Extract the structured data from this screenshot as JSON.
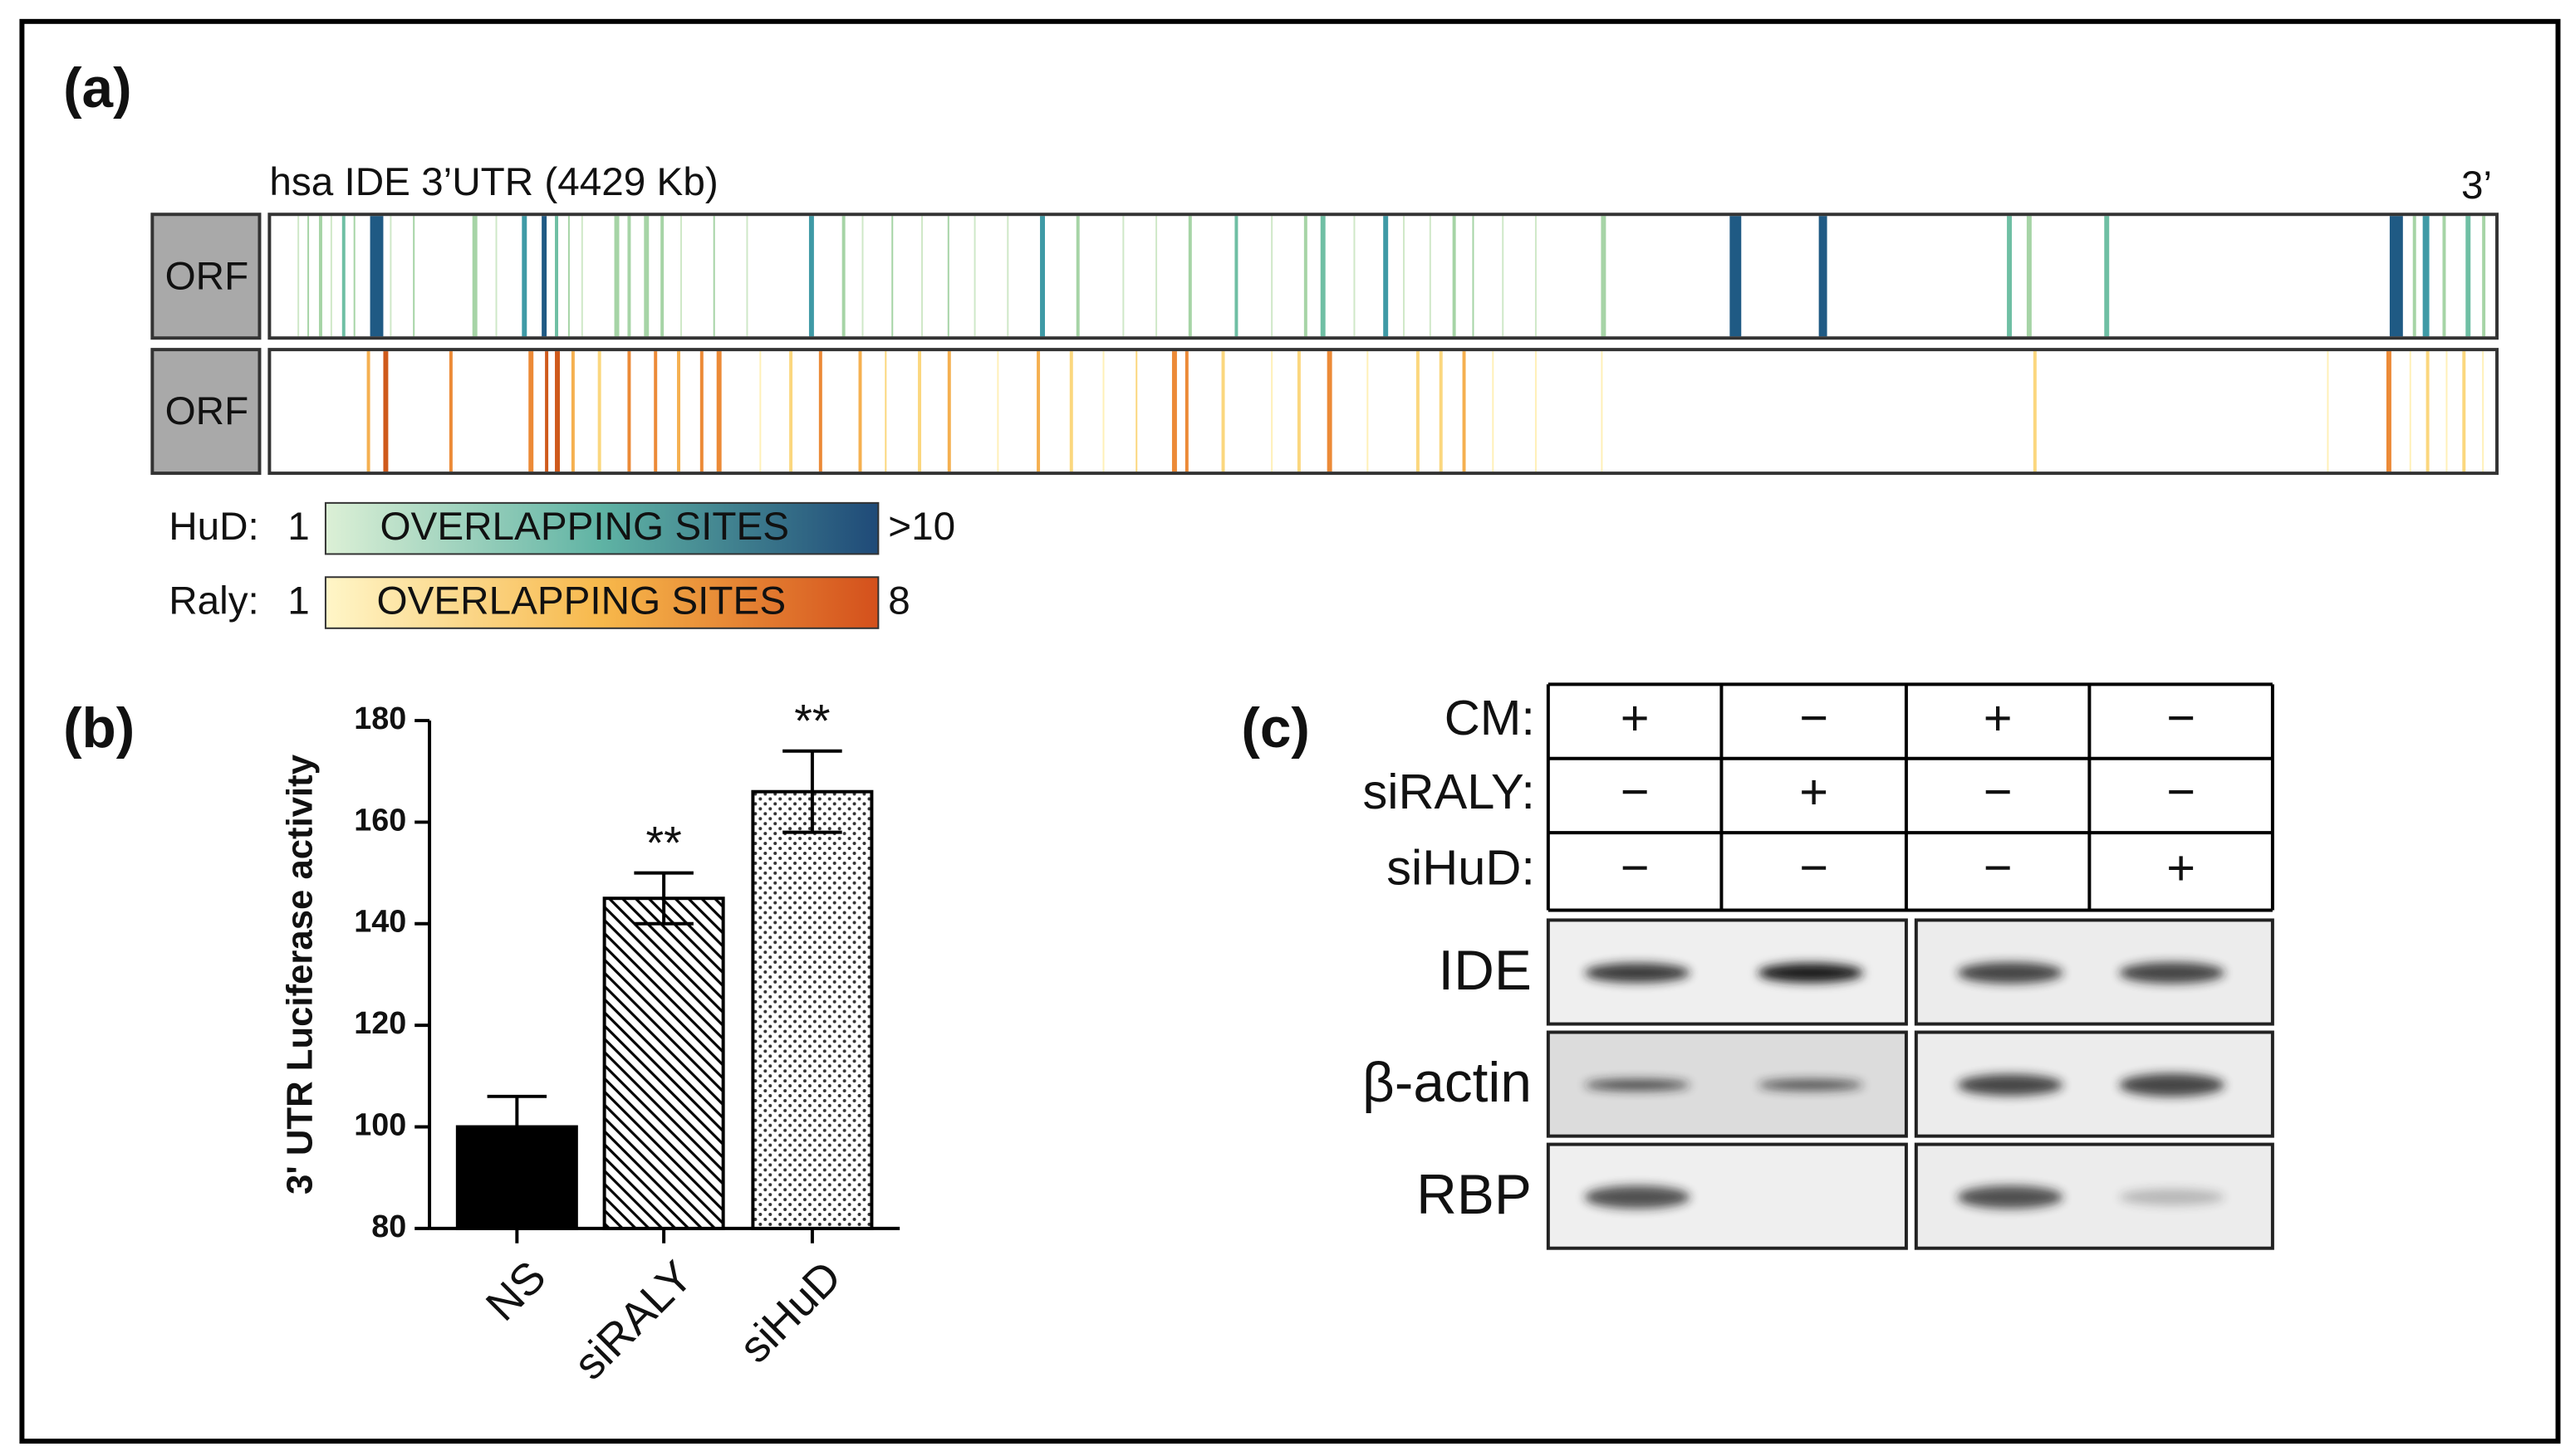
{
  "panel_a": {
    "label": "(a)",
    "track_title": "hsa IDE 3’UTR (4429 Kb)",
    "end_label": "3’",
    "orf_labels": [
      "ORF",
      "ORF"
    ],
    "legend": [
      {
        "name": "HuD:",
        "min": "1",
        "text": "OVERLAPPING SITES",
        "max": ">10"
      },
      {
        "name": "Raly:",
        "min": "1",
        "text": "OVERLAPPING SITES",
        "max": "8"
      }
    ]
  },
  "chart_data": {
    "type": "bar",
    "label": "(b)",
    "ylabel": "3' UTR Luciferase activity",
    "categories": [
      "NS",
      "siRALY",
      "siHuD"
    ],
    "values": [
      100,
      145,
      166
    ],
    "errors": [
      6,
      5,
      8
    ],
    "patterns": [
      "solid",
      "hatch",
      "dots"
    ],
    "color": "#000000",
    "ylim": [
      80,
      180
    ],
    "yticks": [
      80,
      100,
      120,
      140,
      160,
      180
    ],
    "annotations": [
      {
        "text": "**",
        "category": "siRALY"
      },
      {
        "text": "**",
        "category": "siHuD"
      }
    ]
  },
  "panel_c": {
    "label": "(c)",
    "rows": [
      {
        "label": "CM:",
        "signs": [
          "+",
          "−",
          "+",
          "−"
        ]
      },
      {
        "label": "siRALY:",
        "signs": [
          "−",
          "+",
          "−",
          "−"
        ]
      },
      {
        "label": "siHuD:",
        "signs": [
          "−",
          "−",
          "−",
          "+"
        ]
      }
    ],
    "blots": [
      "IDE",
      "β-actin",
      "RBP"
    ]
  }
}
